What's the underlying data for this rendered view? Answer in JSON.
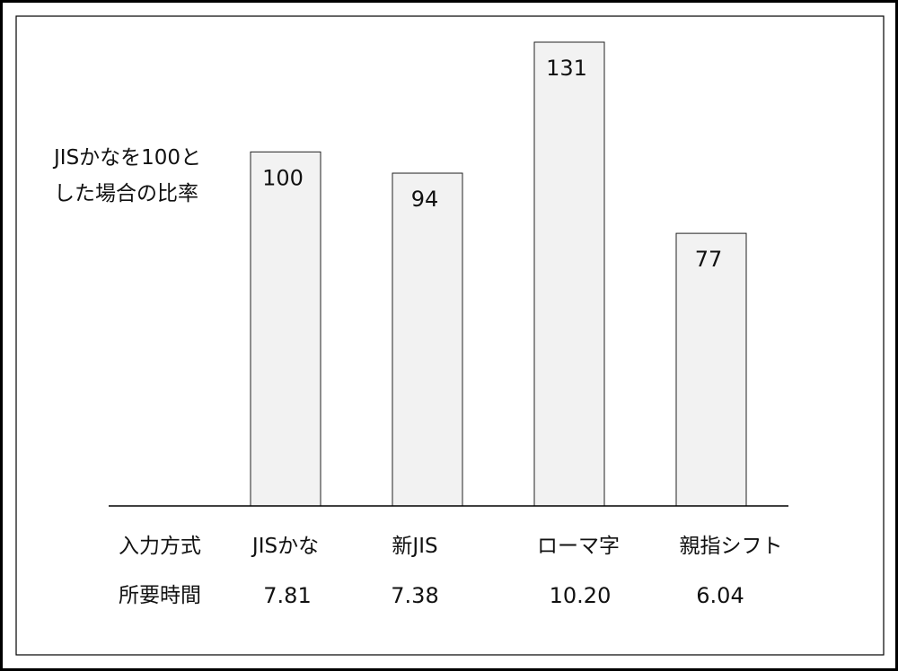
{
  "chart_data": {
    "type": "bar",
    "title": "",
    "ylabel": [
      "JISかなを100と",
      "した場合の比率"
    ],
    "xlabel": "",
    "categories": [
      "JISかな",
      "新JIS",
      "ローマ字",
      "親指シフト"
    ],
    "values": [
      100,
      94,
      131,
      77
    ],
    "ylim": [
      0,
      131
    ],
    "grid": false,
    "legend": "none",
    "row_headers": {
      "method": "入力方式",
      "time": "所要時間"
    },
    "times": [
      "7.81",
      "7.38",
      "10.20",
      "6.04"
    ],
    "colors": {
      "bar_fill": "#f2f2f2",
      "bar_stroke": "#222222",
      "border": "#000000"
    }
  }
}
